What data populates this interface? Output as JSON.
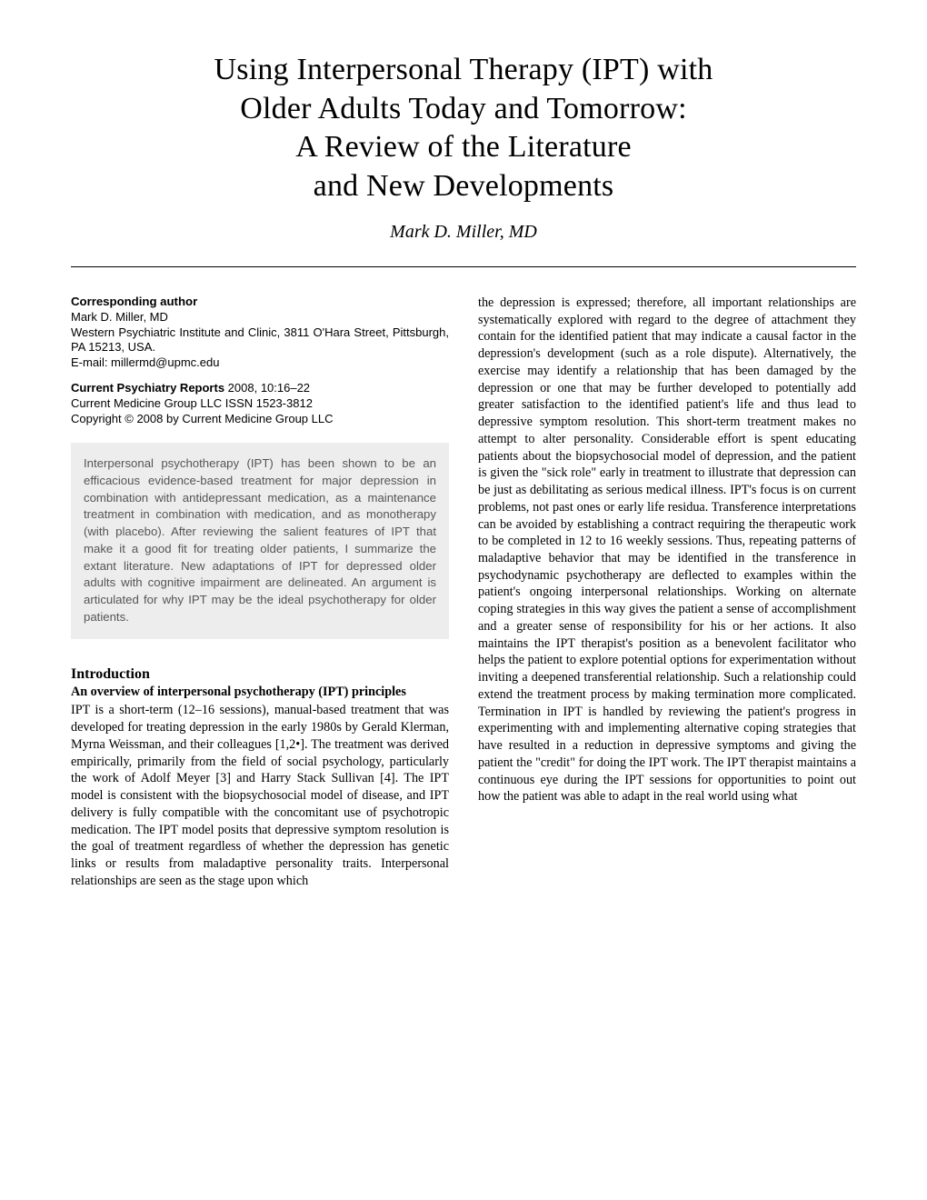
{
  "title": {
    "line1": "Using Interpersonal Therapy (IPT) with",
    "line2": "Older Adults Today and Tomorrow:",
    "line3": "A Review of the Literature",
    "line4": "and New Developments",
    "fontsize": 34,
    "color": "#000000"
  },
  "author": "Mark D. Miller, MD",
  "author_fontsize": 20,
  "rule_color": "#000000",
  "correspondence": {
    "label": "Corresponding author",
    "name": "Mark D. Miller, MD",
    "affiliation": "Western Psychiatric Institute and Clinic, 3811 O'Hara Street, Pittsburgh, PA 15213, USA.",
    "email_label": "E-mail: millermd@upmc.edu"
  },
  "journal": {
    "name": "Current Psychiatry Reports",
    "year_vol": " 2008, 10:16–22",
    "publisher": "Current Medicine Group LLC ISSN 1523-3812",
    "copyright": "Copyright © 2008 by Current Medicine Group LLC"
  },
  "abstract_text": "Interpersonal psychotherapy (IPT) has been shown to be an efficacious evidence-based treatment for major depression in combination with antidepressant medication, as a maintenance treatment in combination with medication, and as monotherapy (with placebo). After reviewing the salient features of IPT that make it a good fit for treating older patients, I summarize the extant literature. New adaptations of IPT for depressed older adults with cognitive impairment are delineated. An argument is articulated for why IPT may be the ideal psychotherapy for older patients.",
  "abstract_bg": "#ededed",
  "abstract_color": "#555555",
  "section": {
    "heading": "Introduction",
    "subheading": "An overview of interpersonal psychotherapy (IPT) principles"
  },
  "left_body": "IPT is a short-term (12–16 sessions), manual-based treatment that was developed for treating depression in the early 1980s by Gerald Klerman, Myrna Weissman, and their colleagues [1,2•]. The treatment was derived empirically, primarily from the field of social psychology, particularly the work of Adolf Meyer [3] and Harry Stack Sullivan [4]. The IPT model is consistent with the biopsychosocial model of disease, and IPT delivery is fully compatible with the concomitant use of psychotropic medication. The IPT model posits that depressive symptom resolution is the goal of treatment regardless of whether the depression has genetic links or results from maladaptive personality traits. Interpersonal relationships are seen as the stage upon which",
  "right_body": "the depression is expressed; therefore, all important relationships are systematically explored with regard to the degree of attachment they contain for the identified patient that may indicate a causal factor in the depression's development (such as a role dispute). Alternatively, the exercise may identify a relationship that has been damaged by the depression or one that may be further developed to potentially add greater satisfaction to the identified patient's life and thus lead to depressive symptom resolution. This short-term treatment makes no attempt to alter personality. Considerable effort is spent educating patients about the biopsychosocial model of depression, and the patient is given the \"sick role\" early in treatment to illustrate that depression can be just as debilitating as serious medical illness. IPT's focus is on current problems, not past ones or early life residua. Transference interpretations can be avoided by establishing a contract requiring the therapeutic work to be completed in 12 to 16 weekly sessions. Thus, repeating patterns of maladaptive behavior that may be identified in the transference in psychodynamic psychotherapy are deflected to examples within the patient's ongoing interpersonal relationships. Working on alternate coping strategies in this way gives the patient a sense of accomplishment and a greater sense of responsibility for his or her actions. It also maintains the IPT therapist's position as a benevolent facilitator who helps the patient to explore potential options for experimentation without inviting a deepened transferential relationship. Such a relationship could extend the treatment process by making termination more complicated. Termination in IPT is handled by reviewing the patient's progress in experimenting with and implementing alternative coping strategies that have resulted in a reduction in depressive symptoms and giving the patient the \"credit\" for doing the IPT work. The IPT therapist maintains a continuous eye during the IPT sessions for opportunities to point out how the patient was able to adapt in the real world using what",
  "body_fontsize": 14.2,
  "body_color": "#000000",
  "page_bg": "#ffffff"
}
